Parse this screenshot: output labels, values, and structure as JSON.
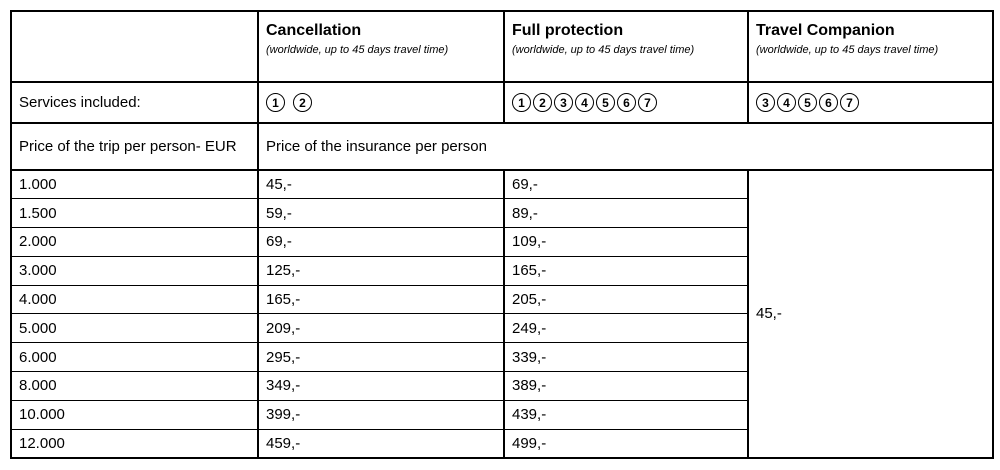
{
  "colors": {
    "border": "#000000",
    "text": "#000000",
    "background": "#ffffff"
  },
  "table": {
    "columns": [
      {
        "title": "",
        "subtitle": ""
      },
      {
        "title": "Cancellation",
        "subtitle": "(worldwide, up to 45 days travel time)"
      },
      {
        "title": "Full protection",
        "subtitle": "(worldwide, up to 45 days travel time)"
      },
      {
        "title": "Travel Companion",
        "subtitle": "(worldwide, up to 45 days travel time)"
      }
    ],
    "services_row": {
      "label": "Services included:",
      "cancellation_services": [
        1,
        2
      ],
      "full_protection_services": [
        1,
        2,
        3,
        4,
        5,
        6,
        7
      ],
      "travel_companion_services": [
        3,
        4,
        5,
        6,
        7
      ]
    },
    "price_header": {
      "trip_label": "Price of the trip per person- EUR",
      "insurance_label": "Price of the insurance per person"
    },
    "price_rows": [
      {
        "trip": "1.000",
        "cancellation": "45,-",
        "full_protection": "69,-"
      },
      {
        "trip": "1.500",
        "cancellation": "59,-",
        "full_protection": "89,-"
      },
      {
        "trip": "2.000",
        "cancellation": "69,-",
        "full_protection": "109,-"
      },
      {
        "trip": "3.000",
        "cancellation": "125,-",
        "full_protection": "165,-"
      },
      {
        "trip": "4.000",
        "cancellation": "165,-",
        "full_protection": "205,-"
      },
      {
        "trip": "5.000",
        "cancellation": "209,-",
        "full_protection": "249,-"
      },
      {
        "trip": "6.000",
        "cancellation": "295,-",
        "full_protection": "339,-"
      },
      {
        "trip": "8.000",
        "cancellation": "349,-",
        "full_protection": "389,-"
      },
      {
        "trip": "10.000",
        "cancellation": "399,-",
        "full_protection": "439,-"
      },
      {
        "trip": "12.000",
        "cancellation": "459,-",
        "full_protection": "499,-"
      }
    ],
    "travel_companion_price": "45,-"
  }
}
